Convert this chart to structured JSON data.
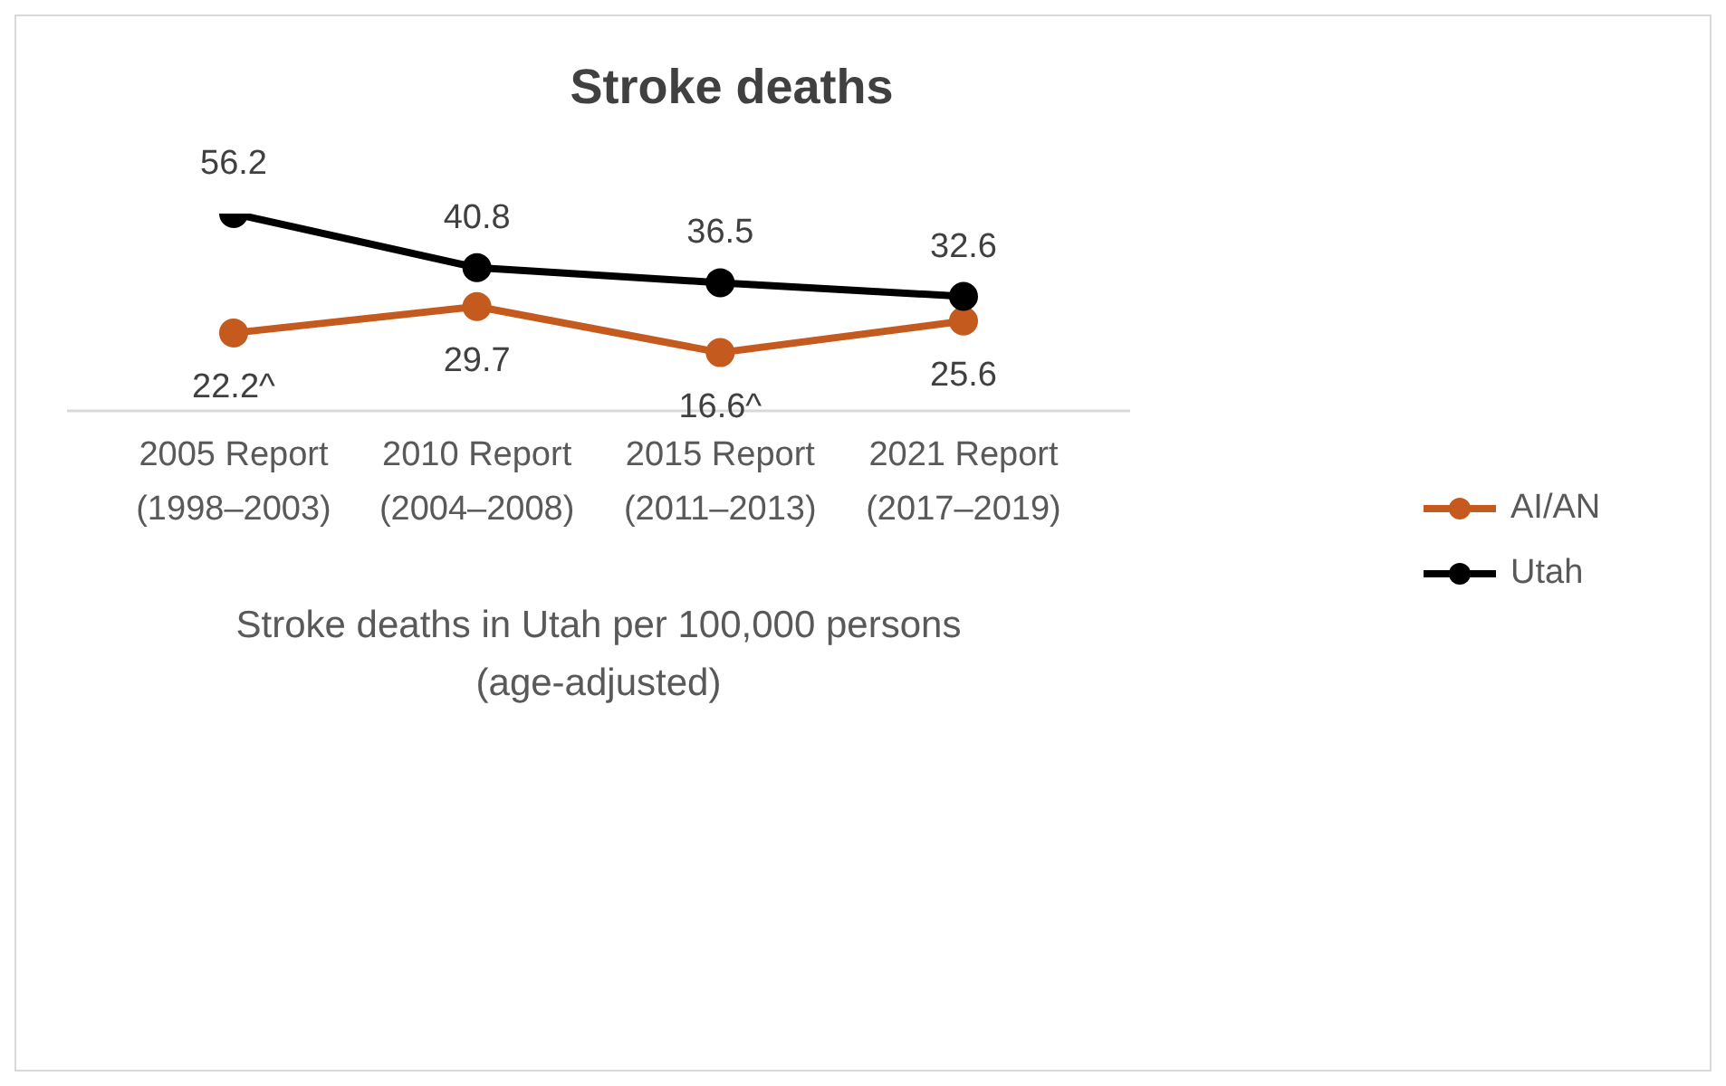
{
  "chart_data": {
    "type": "line",
    "title": "Stroke deaths",
    "xlabel": "Stroke deaths in Utah per 100,000 persons\n(age-adjusted)",
    "categories": [
      "2005 Report\n(1998–2003)",
      "2010 Report\n(2004–2008)",
      "2015 Report\n(2011–2013)",
      "2021 Report\n(2017–2019)"
    ],
    "series": [
      {
        "name": "AI/AN",
        "color": "#c55a1e",
        "values": [
          22.2,
          29.7,
          16.6,
          25.6
        ],
        "value_labels": [
          "22.2^",
          "29.7",
          "16.6^",
          "25.6"
        ]
      },
      {
        "name": "Utah",
        "color": "#000000",
        "values": [
          56.2,
          40.8,
          36.5,
          32.6
        ],
        "value_labels": [
          "56.2",
          "40.8",
          "36.5",
          "32.6"
        ]
      }
    ],
    "tick_labels": "x",
    "grid": false,
    "legend": "right",
    "marker": "circle",
    "line_style": "solid"
  }
}
